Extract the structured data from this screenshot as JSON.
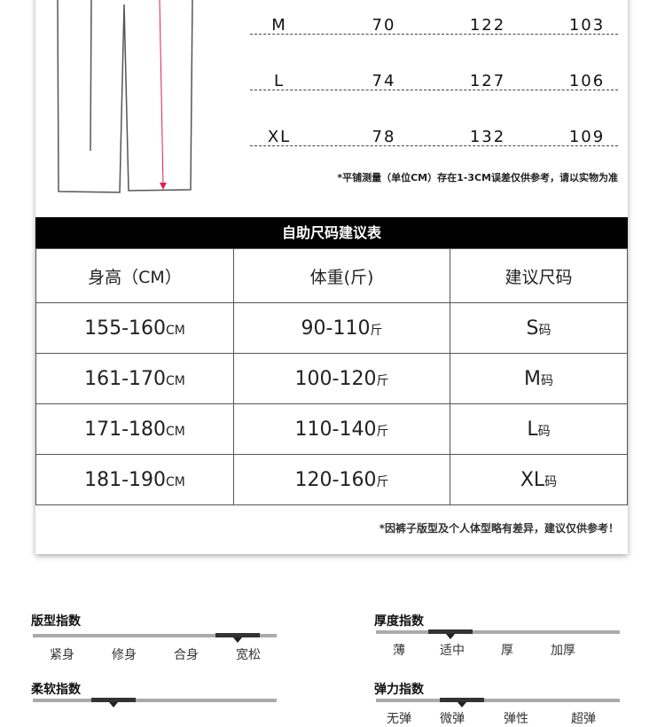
{
  "size_table": {
    "rows": [
      [
        "M",
        "70",
        "122",
        "103"
      ],
      [
        "L",
        "74",
        "127",
        "106"
      ],
      [
        "XL",
        "78",
        "132",
        "109"
      ]
    ],
    "note": "*平铺测量（单位CM）存在1-3CM误差仅供参考，请以实物为准"
  },
  "suggest": {
    "title": "自助尺码建议表",
    "headers": [
      "身高（CM）",
      "体重(斤)",
      "建议尺码"
    ],
    "rows": [
      {
        "h": "155-160",
        "hu": "CM",
        "w": "90-110",
        "wu": "斤",
        "s": "S",
        "su": "码"
      },
      {
        "h": "161-170",
        "hu": "CM",
        "w": "100-120",
        "wu": "斤",
        "s": "M",
        "su": "码"
      },
      {
        "h": "171-180",
        "hu": "CM",
        "w": "110-140",
        "wu": "斤",
        "s": "L",
        "su": "码"
      },
      {
        "h": "181-190",
        "hu": "CM",
        "w": "120-160",
        "wu": "斤",
        "s": "XL",
        "su": "码"
      }
    ],
    "note": "*因裤子版型及个人体型略有差异，建议仅供参考！"
  },
  "indices": [
    {
      "title": "版型指数",
      "labels": [
        "紧身",
        "修身",
        "合身",
        "宽松"
      ],
      "selected": "宽松"
    },
    {
      "title": "厚度指数",
      "labels": [
        "薄",
        "适中",
        "厚",
        "加厚"
      ],
      "selected": "适中"
    },
    {
      "title": "柔软指数",
      "labels": [],
      "selected_position": 2
    },
    {
      "title": "弹力指数",
      "labels": [
        "无弹",
        "微弹",
        "弹性",
        "超弹"
      ],
      "selected": "微弹"
    }
  ],
  "colors": {
    "measure_arrow": "#e0204a",
    "header_bar": "#000000"
  }
}
